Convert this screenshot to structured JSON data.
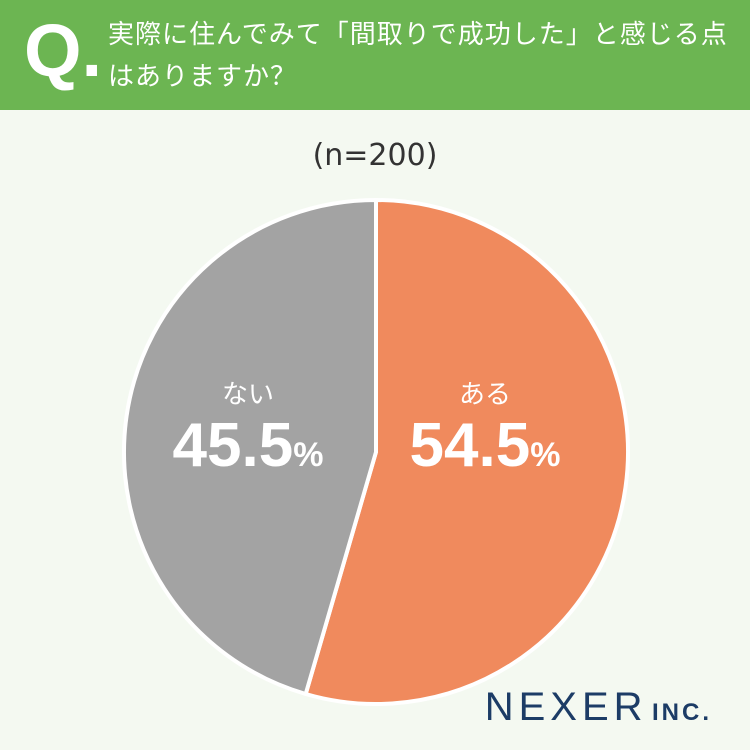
{
  "header": {
    "q_mark": "Q.",
    "question_line1": "実際に住んでみて「間取りで成功した」と感じる点",
    "question_line2": "はありますか？"
  },
  "sample_label": "(n=200)",
  "colors": {
    "header_bg": "#6cb552",
    "yes_slice": "#f08a5d",
    "no_slice": "#a3a3a3",
    "background": "#f4f9f1",
    "logo": "#1c3c66"
  },
  "chart_data": {
    "type": "pie",
    "categories": [
      "ある",
      "ない"
    ],
    "values": [
      54.5,
      45.5
    ],
    "unit": "%",
    "value_labels": [
      "54.5",
      "45.5"
    ],
    "n": 200
  },
  "logo": {
    "main": "NEXER",
    "inc": "INC."
  }
}
